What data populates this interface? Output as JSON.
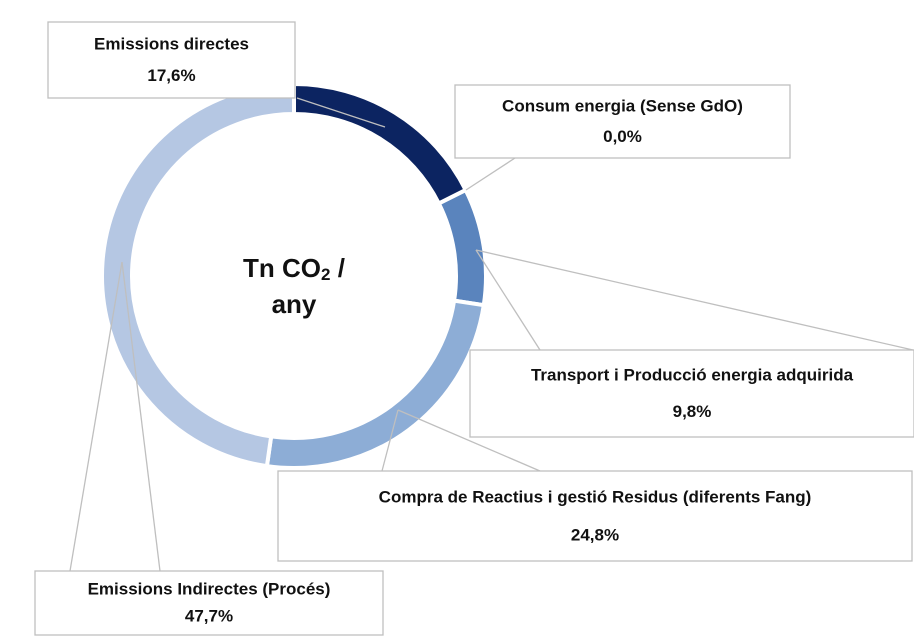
{
  "chart_data": {
    "type": "donut",
    "center_label": {
      "text": "Tn CO",
      "subscript": "2",
      "suffix": " /",
      "line2": "any"
    },
    "categories": [
      "Emissions directes",
      "Consum energia (Sense GdO)",
      "Transport i Producció energia adquirida",
      "Compra de Reactius i gestió Residus (diferents Fang)",
      "Emissions Indirectes (Procés)"
    ],
    "values": [
      17.6,
      0.0,
      9.8,
      24.8,
      47.7
    ],
    "value_labels": [
      "17,6%",
      "0,0%",
      "9,8%",
      "24,8%",
      "47,7%"
    ],
    "colors": [
      "#0c2461",
      "#1f3f80",
      "#5a84bd",
      "#8dadd6",
      "#b5c7e3"
    ]
  }
}
